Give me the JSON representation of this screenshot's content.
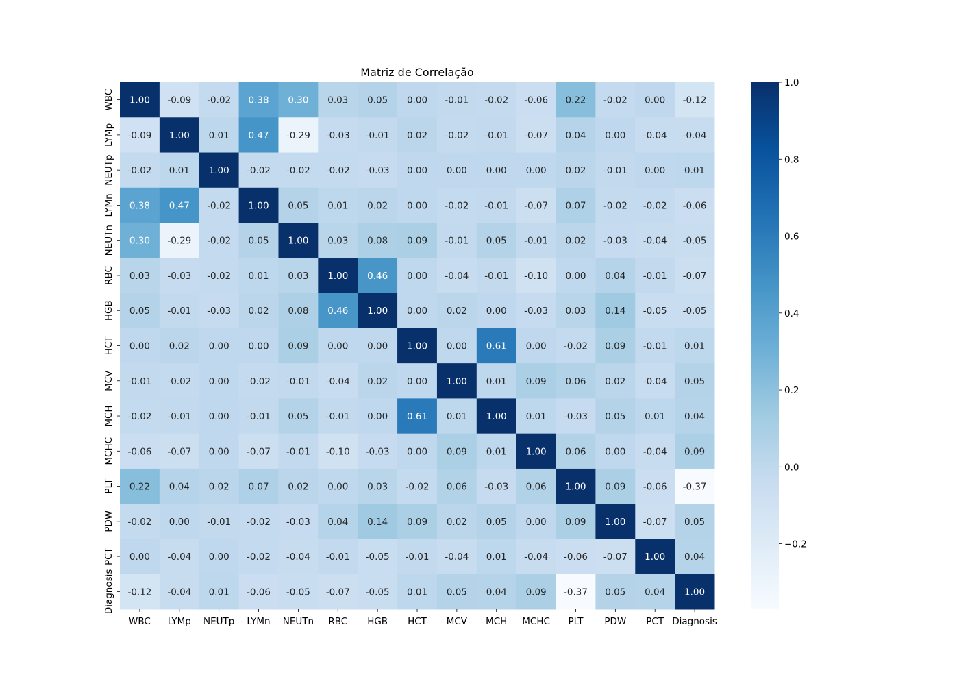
{
  "chart_data": {
    "type": "heatmap",
    "title": "Matriz de Correlação",
    "xlabel": "",
    "ylabel": "",
    "rows": [
      "WBC",
      "LYMp",
      "NEUTp",
      "LYMn",
      "NEUTn",
      "RBC",
      "HGB",
      "HCT",
      "MCV",
      "MCH",
      "MCHC",
      "PLT",
      "PDW",
      "PCT",
      "Diagnosis"
    ],
    "columns": [
      "WBC",
      "LYMp",
      "NEUTp",
      "LYMn",
      "NEUTn",
      "RBC",
      "HGB",
      "HCT",
      "MCV",
      "MCH",
      "MCHC",
      "PLT",
      "PDW",
      "PCT",
      "Diagnosis"
    ],
    "values": [
      [
        1.0,
        -0.09,
        -0.02,
        0.38,
        0.3,
        0.03,
        0.05,
        -0.0,
        -0.01,
        -0.02,
        -0.06,
        0.22,
        -0.02,
        -0.0,
        -0.12
      ],
      [
        -0.09,
        1.0,
        0.01,
        0.47,
        -0.29,
        -0.03,
        -0.01,
        0.02,
        -0.02,
        -0.01,
        -0.07,
        0.04,
        0.0,
        -0.04,
        -0.04
      ],
      [
        -0.02,
        0.01,
        1.0,
        -0.02,
        -0.02,
        -0.02,
        -0.03,
        -0.0,
        -0.0,
        -0.0,
        -0.0,
        0.02,
        -0.01,
        -0.0,
        0.01
      ],
      [
        0.38,
        0.47,
        -0.02,
        1.0,
        0.05,
        0.01,
        0.02,
        0.0,
        -0.02,
        -0.01,
        -0.07,
        0.07,
        -0.02,
        -0.02,
        -0.06
      ],
      [
        0.3,
        -0.29,
        -0.02,
        0.05,
        1.0,
        0.03,
        0.08,
        0.09,
        -0.01,
        0.05,
        -0.01,
        0.02,
        -0.03,
        -0.04,
        -0.05
      ],
      [
        0.03,
        -0.03,
        -0.02,
        0.01,
        0.03,
        1.0,
        0.46,
        -0.0,
        -0.04,
        -0.01,
        -0.1,
        0.0,
        0.04,
        -0.01,
        -0.07
      ],
      [
        0.05,
        -0.01,
        -0.03,
        0.02,
        0.08,
        0.46,
        1.0,
        -0.0,
        0.02,
        0.0,
        -0.03,
        0.03,
        0.14,
        -0.05,
        -0.05
      ],
      [
        -0.0,
        0.02,
        -0.0,
        0.0,
        0.09,
        -0.0,
        -0.0,
        1.0,
        0.0,
        0.61,
        0.0,
        -0.02,
        0.09,
        -0.01,
        0.01
      ],
      [
        -0.01,
        -0.02,
        -0.0,
        -0.02,
        -0.01,
        -0.04,
        0.02,
        0.0,
        1.0,
        0.01,
        0.09,
        0.06,
        0.02,
        -0.04,
        0.05
      ],
      [
        -0.02,
        -0.01,
        -0.0,
        -0.01,
        0.05,
        -0.01,
        0.0,
        0.61,
        0.01,
        1.0,
        0.01,
        -0.03,
        0.05,
        0.01,
        0.04
      ],
      [
        -0.06,
        -0.07,
        -0.0,
        -0.07,
        -0.01,
        -0.1,
        -0.03,
        0.0,
        0.09,
        0.01,
        1.0,
        0.06,
        0.0,
        -0.04,
        0.09
      ],
      [
        0.22,
        0.04,
        0.02,
        0.07,
        0.02,
        0.0,
        0.03,
        -0.02,
        0.06,
        -0.03,
        0.06,
        1.0,
        0.09,
        -0.06,
        -0.37
      ],
      [
        -0.02,
        0.0,
        -0.01,
        -0.02,
        -0.03,
        0.04,
        0.14,
        0.09,
        0.02,
        0.05,
        0.0,
        0.09,
        1.0,
        -0.07,
        0.05
      ],
      [
        -0.0,
        -0.04,
        -0.0,
        -0.02,
        -0.04,
        -0.01,
        -0.05,
        -0.01,
        -0.04,
        0.01,
        -0.04,
        -0.06,
        -0.07,
        1.0,
        0.04
      ],
      [
        -0.12,
        -0.04,
        0.01,
        -0.06,
        -0.05,
        -0.07,
        -0.05,
        0.01,
        0.05,
        0.04,
        0.09,
        -0.37,
        0.05,
        0.04,
        1.0
      ]
    ],
    "value_format": "0.00",
    "colormap": "Blues",
    "vmin": -0.37,
    "vmax": 1.0,
    "colorbar_ticks": [
      1.0,
      0.8,
      0.6,
      0.4,
      0.2,
      0.0,
      -0.2
    ],
    "colorbar_tick_labels": [
      "1.0",
      "0.8",
      "0.6",
      "0.4",
      "0.2",
      "0.0",
      "−0.2"
    ],
    "annotation_colors": {
      "dark_text": "#262626",
      "light_text": "#ffffff"
    },
    "grid": false,
    "legend": "colorbar-right"
  }
}
